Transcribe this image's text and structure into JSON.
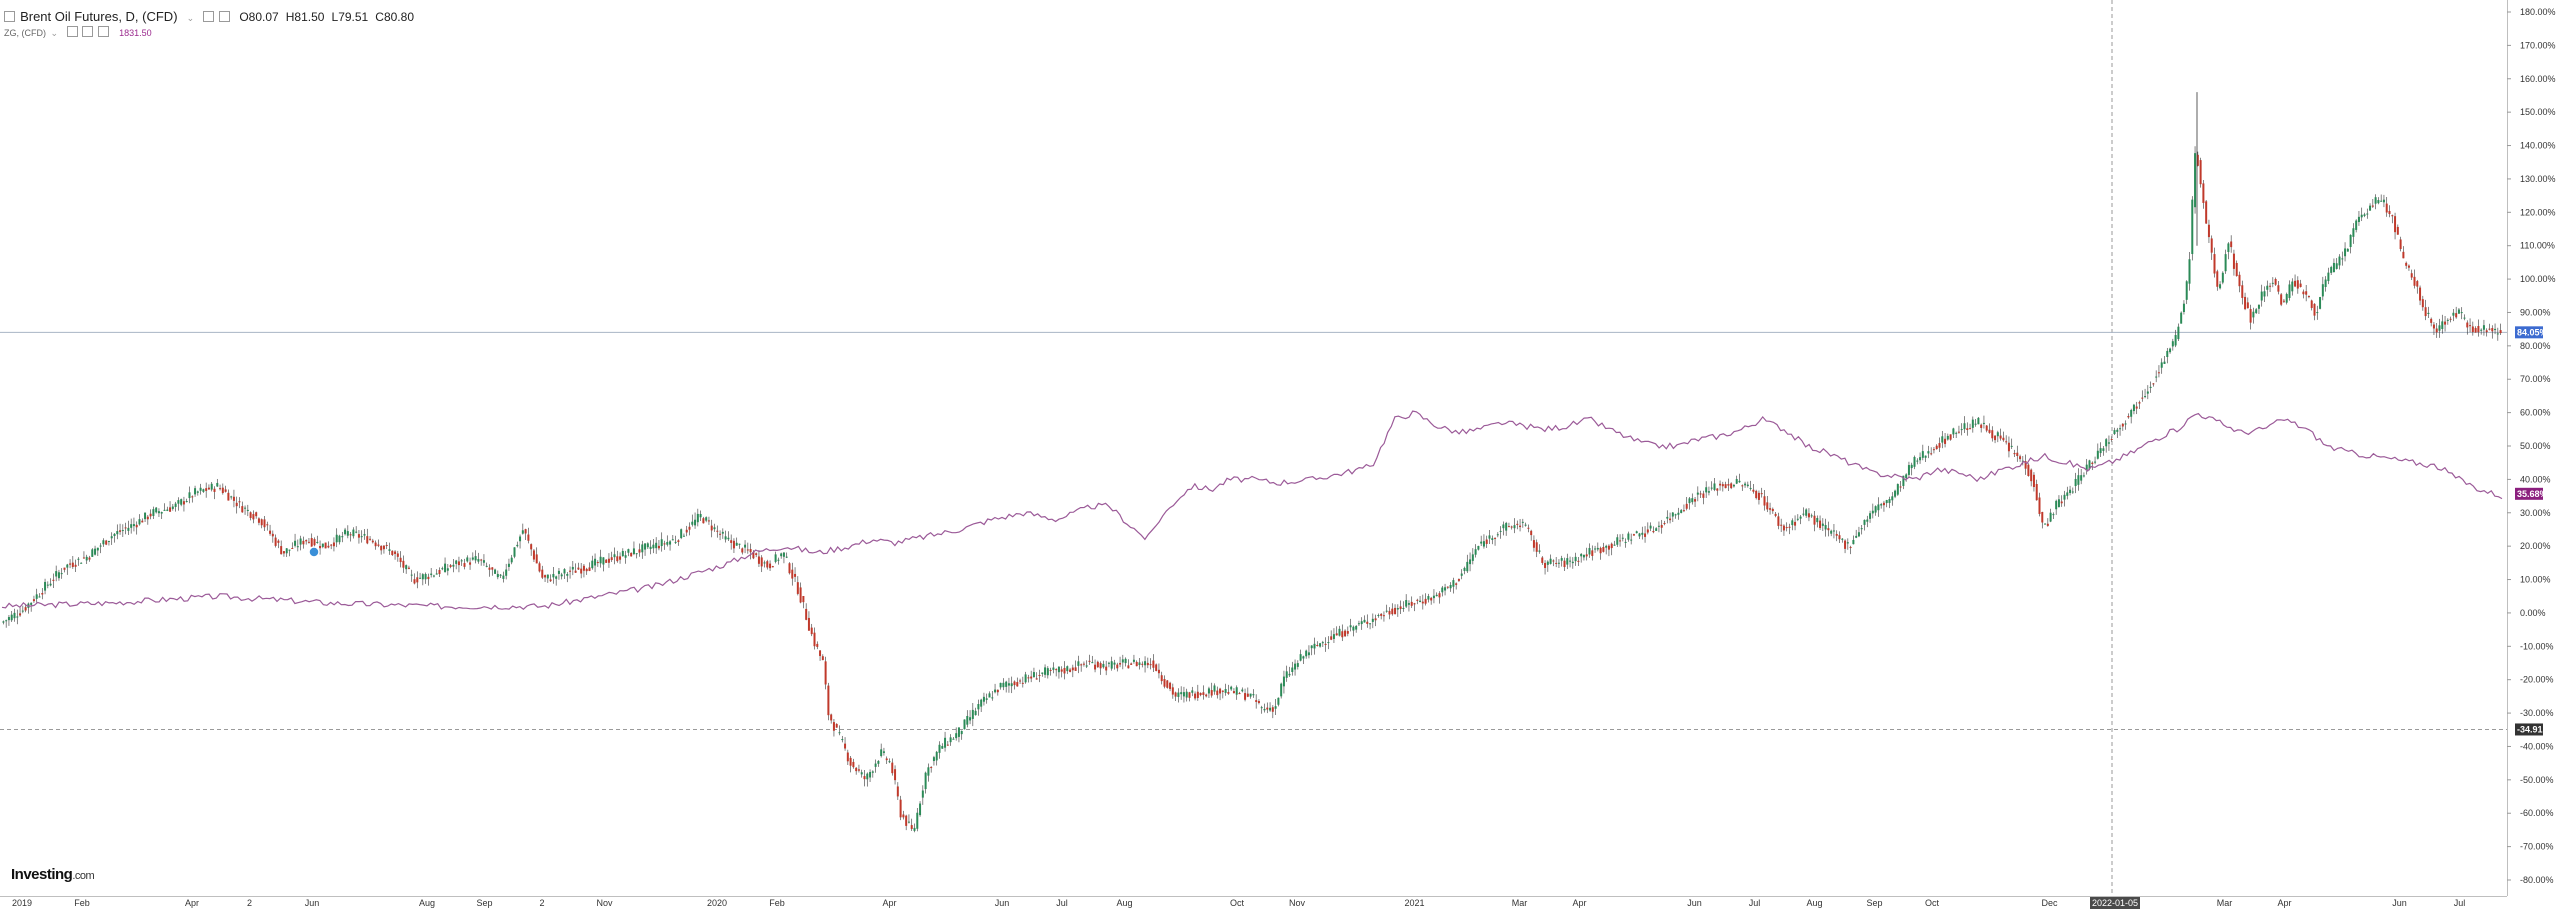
{
  "legend": {
    "title": "Brent Oil Futures, D, (CFD)",
    "open": "O80.07",
    "high": "H81.50",
    "low": "L79.51",
    "close": "C80.80",
    "series2": "ZG, (CFD)",
    "series2_value": "1831.50"
  },
  "brand": {
    "name": "Investing",
    "suffix": ".com"
  },
  "chart_data": {
    "type": "line",
    "series": [
      {
        "name": "Brent Oil Futures, D, (CFD)",
        "style": "candlestick",
        "up_color": "#2b8a57",
        "down_color": "#c0392b",
        "points": [
          [
            0.0,
            -3
          ],
          [
            0.009,
            1
          ],
          [
            0.018,
            8
          ],
          [
            0.026,
            14
          ],
          [
            0.035,
            17
          ],
          [
            0.044,
            23
          ],
          [
            0.052,
            26
          ],
          [
            0.061,
            30
          ],
          [
            0.07,
            32
          ],
          [
            0.078,
            36
          ],
          [
            0.087,
            38
          ],
          [
            0.096,
            32
          ],
          [
            0.104,
            28
          ],
          [
            0.113,
            18
          ],
          [
            0.122,
            22
          ],
          [
            0.13,
            20
          ],
          [
            0.139,
            24
          ],
          [
            0.148,
            22
          ],
          [
            0.157,
            18
          ],
          [
            0.165,
            10
          ],
          [
            0.174,
            12
          ],
          [
            0.183,
            15
          ],
          [
            0.191,
            16
          ],
          [
            0.2,
            10
          ],
          [
            0.209,
            25
          ],
          [
            0.217,
            10
          ],
          [
            0.226,
            12
          ],
          [
            0.235,
            14
          ],
          [
            0.243,
            16
          ],
          [
            0.252,
            18
          ],
          [
            0.261,
            20
          ],
          [
            0.27,
            22
          ],
          [
            0.28,
            29
          ],
          [
            0.29,
            22
          ],
          [
            0.3,
            18
          ],
          [
            0.307,
            14
          ],
          [
            0.313,
            18
          ],
          [
            0.319,
            7
          ],
          [
            0.325,
            -8
          ],
          [
            0.329,
            -15
          ],
          [
            0.331,
            -30
          ],
          [
            0.336,
            -38
          ],
          [
            0.34,
            -45
          ],
          [
            0.346,
            -50
          ],
          [
            0.352,
            -42
          ],
          [
            0.356,
            -45
          ],
          [
            0.36,
            -60
          ],
          [
            0.365,
            -66
          ],
          [
            0.37,
            -48
          ],
          [
            0.376,
            -40
          ],
          [
            0.383,
            -36
          ],
          [
            0.391,
            -28
          ],
          [
            0.4,
            -22
          ],
          [
            0.409,
            -20
          ],
          [
            0.417,
            -18
          ],
          [
            0.426,
            -17
          ],
          [
            0.435,
            -15
          ],
          [
            0.443,
            -16
          ],
          [
            0.452,
            -15
          ],
          [
            0.461,
            -15
          ],
          [
            0.465,
            -20
          ],
          [
            0.47,
            -25
          ],
          [
            0.478,
            -24
          ],
          [
            0.487,
            -23
          ],
          [
            0.496,
            -24
          ],
          [
            0.5,
            -25
          ],
          [
            0.505,
            -29
          ],
          [
            0.51,
            -28
          ],
          [
            0.513,
            -20
          ],
          [
            0.522,
            -12
          ],
          [
            0.53,
            -8
          ],
          [
            0.539,
            -5
          ],
          [
            0.548,
            -2
          ],
          [
            0.557,
            1
          ],
          [
            0.565,
            3
          ],
          [
            0.574,
            5
          ],
          [
            0.583,
            10
          ],
          [
            0.591,
            20
          ],
          [
            0.6,
            25
          ],
          [
            0.609,
            27
          ],
          [
            0.617,
            15
          ],
          [
            0.626,
            15
          ],
          [
            0.635,
            18
          ],
          [
            0.643,
            20
          ],
          [
            0.652,
            23
          ],
          [
            0.661,
            25
          ],
          [
            0.67,
            30
          ],
          [
            0.678,
            35
          ],
          [
            0.687,
            38
          ],
          [
            0.696,
            39
          ],
          [
            0.704,
            35
          ],
          [
            0.713,
            25
          ],
          [
            0.722,
            30
          ],
          [
            0.73,
            25
          ],
          [
            0.739,
            20
          ],
          [
            0.748,
            30
          ],
          [
            0.757,
            35
          ],
          [
            0.765,
            45
          ],
          [
            0.774,
            50
          ],
          [
            0.783,
            55
          ],
          [
            0.791,
            57
          ],
          [
            0.8,
            52
          ],
          [
            0.809,
            45
          ],
          [
            0.813,
            40
          ],
          [
            0.817,
            25
          ],
          [
            0.822,
            32
          ],
          [
            0.826,
            35
          ],
          [
            0.835,
            44
          ],
          [
            0.843,
            52
          ],
          [
            0.852,
            60
          ],
          [
            0.861,
            70
          ],
          [
            0.87,
            82
          ],
          [
            0.875,
            100
          ],
          [
            0.878,
            140
          ],
          [
            0.882,
            118
          ],
          [
            0.887,
            95
          ],
          [
            0.891,
            112
          ],
          [
            0.896,
            96
          ],
          [
            0.9,
            88
          ],
          [
            0.904,
            95
          ],
          [
            0.909,
            100
          ],
          [
            0.913,
            92
          ],
          [
            0.917,
            100
          ],
          [
            0.922,
            95
          ],
          [
            0.926,
            90
          ],
          [
            0.93,
            100
          ],
          [
            0.935,
            105
          ],
          [
            0.939,
            110
          ],
          [
            0.943,
            118
          ],
          [
            0.948,
            122
          ],
          [
            0.952,
            124
          ],
          [
            0.957,
            118
          ],
          [
            0.961,
            105
          ],
          [
            0.965,
            100
          ],
          [
            0.97,
            90
          ],
          [
            0.974,
            84
          ],
          [
            0.978,
            88
          ],
          [
            0.983,
            90
          ],
          [
            0.987,
            86
          ],
          [
            1.0,
            84
          ]
        ]
      },
      {
        "name": "ZG, (CFD)",
        "style": "line",
        "color": "#9b5a98",
        "points": [
          [
            0.0,
            2
          ],
          [
            0.043,
            3
          ],
          [
            0.087,
            5
          ],
          [
            0.13,
            3
          ],
          [
            0.174,
            2
          ],
          [
            0.217,
            2
          ],
          [
            0.261,
            8
          ],
          [
            0.291,
            15
          ],
          [
            0.3,
            18
          ],
          [
            0.313,
            20
          ],
          [
            0.326,
            18
          ],
          [
            0.339,
            20
          ],
          [
            0.348,
            22
          ],
          [
            0.357,
            21
          ],
          [
            0.37,
            23
          ],
          [
            0.383,
            25
          ],
          [
            0.396,
            28
          ],
          [
            0.409,
            30
          ],
          [
            0.422,
            28
          ],
          [
            0.429,
            30
          ],
          [
            0.436,
            32
          ],
          [
            0.443,
            32
          ],
          [
            0.45,
            27
          ],
          [
            0.458,
            22
          ],
          [
            0.463,
            28
          ],
          [
            0.47,
            34
          ],
          [
            0.476,
            38
          ],
          [
            0.484,
            37
          ],
          [
            0.491,
            40
          ],
          [
            0.5,
            40
          ],
          [
            0.51,
            39
          ],
          [
            0.524,
            40
          ],
          [
            0.537,
            42
          ],
          [
            0.548,
            44
          ],
          [
            0.557,
            58
          ],
          [
            0.565,
            60
          ],
          [
            0.574,
            56
          ],
          [
            0.583,
            54
          ],
          [
            0.591,
            55
          ],
          [
            0.6,
            57
          ],
          [
            0.609,
            56
          ],
          [
            0.617,
            55
          ],
          [
            0.626,
            56
          ],
          [
            0.635,
            58
          ],
          [
            0.643,
            55
          ],
          [
            0.652,
            52
          ],
          [
            0.661,
            50
          ],
          [
            0.67,
            50
          ],
          [
            0.678,
            52
          ],
          [
            0.687,
            53
          ],
          [
            0.696,
            55
          ],
          [
            0.704,
            58
          ],
          [
            0.713,
            55
          ],
          [
            0.722,
            50
          ],
          [
            0.73,
            48
          ],
          [
            0.739,
            45
          ],
          [
            0.748,
            42
          ],
          [
            0.757,
            41
          ],
          [
            0.765,
            40
          ],
          [
            0.774,
            43
          ],
          [
            0.783,
            42
          ],
          [
            0.791,
            40
          ],
          [
            0.8,
            43
          ],
          [
            0.809,
            45
          ],
          [
            0.817,
            47
          ],
          [
            0.826,
            45
          ],
          [
            0.835,
            43
          ],
          [
            0.843,
            45
          ],
          [
            0.852,
            48
          ],
          [
            0.861,
            52
          ],
          [
            0.87,
            55
          ],
          [
            0.878,
            60
          ],
          [
            0.887,
            57
          ],
          [
            0.896,
            54
          ],
          [
            0.904,
            55
          ],
          [
            0.913,
            58
          ],
          [
            0.922,
            55
          ],
          [
            0.93,
            50
          ],
          [
            0.939,
            48
          ],
          [
            0.948,
            47
          ],
          [
            0.957,
            46
          ],
          [
            0.965,
            45
          ],
          [
            0.974,
            44
          ],
          [
            0.983,
            40
          ],
          [
            0.991,
            37
          ],
          [
            1.0,
            35
          ]
        ]
      }
    ],
    "x_tick_labels": [
      "2019",
      "Feb",
      "Apr",
      "2",
      "Jun",
      "Aug",
      "Sep",
      "2",
      "Nov",
      "2020",
      "Feb",
      "Apr",
      "Jun",
      "Jul",
      "Aug",
      "Oct",
      "Nov",
      "2021",
      "Mar",
      "Apr",
      "Jun",
      "Jul",
      "Aug",
      "Sep",
      "Oct",
      "Dec",
      "2022-01-05",
      "Mar",
      "Apr",
      "Jun",
      "Jul"
    ],
    "x_tick_positions": [
      0.008,
      0.032,
      0.076,
      0.099,
      0.124,
      0.17,
      0.193,
      0.216,
      0.241,
      0.286,
      0.31,
      0.355,
      0.4,
      0.424,
      0.449,
      0.494,
      0.518,
      0.565,
      0.607,
      0.631,
      0.677,
      0.701,
      0.725,
      0.749,
      0.772,
      0.819,
      0.844,
      0.889,
      0.913,
      0.959,
      0.983
    ],
    "highlighted_x_label": "2022-01-05",
    "y_axis": {
      "min": -80,
      "max": 180,
      "step": 10,
      "unit": "%",
      "tick_labels": [
        "180.00%",
        "170.00%",
        "160.00%",
        "150.00%",
        "140.00%",
        "130.00%",
        "120.00%",
        "110.00%",
        "100.00%",
        "90.00%",
        "80.00%",
        "70.00%",
        "60.00%",
        "50.00%",
        "40.00%",
        "30.00%",
        "20.00%",
        "10.00%",
        "0.00%",
        "-10.00%",
        "-20.00%",
        "-30.00%",
        "-40.00%",
        "-50.00%",
        "-60.00%",
        "-70.00%",
        "-80.00%"
      ]
    },
    "markers": [
      {
        "label": "84.05%",
        "value": 84.05,
        "color": "#3c6bd0",
        "line": "solid"
      },
      {
        "label": "35.68%",
        "value": 35.68,
        "color": "#8b1f7e",
        "line": "none"
      },
      {
        "label": "-34.91",
        "value": -34.91,
        "color": "#333333",
        "line": "dashed"
      }
    ],
    "crosshair_x": 0.844,
    "grid": false,
    "legend_position": "top-left"
  }
}
